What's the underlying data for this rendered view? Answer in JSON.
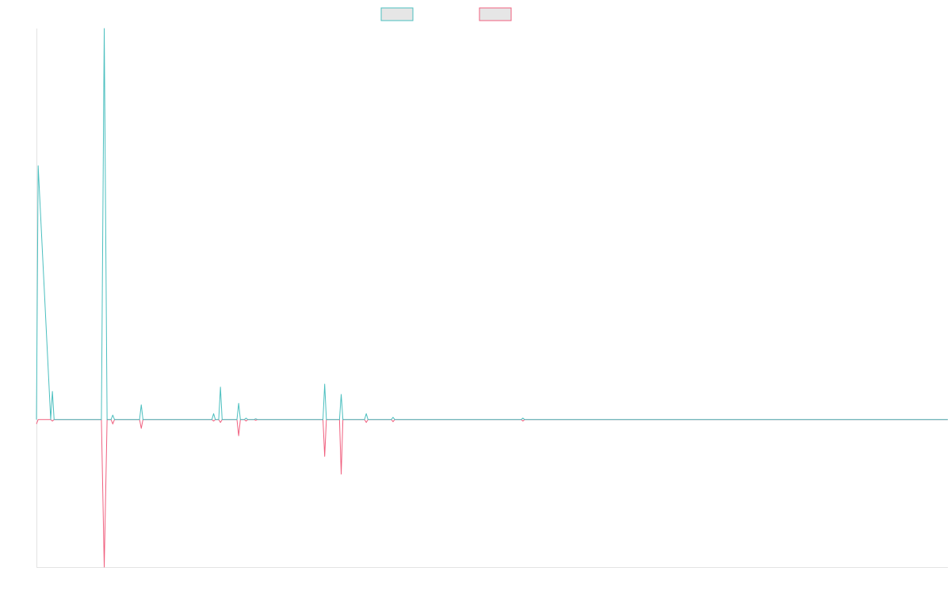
{
  "colors": {
    "series_a": "#4bbfbf",
    "series_b": "#f0607f",
    "axis": "#e3e3e3",
    "legend_fill": "#e6e6e6"
  },
  "chart_data": {
    "type": "line",
    "title": "",
    "xlabel": "",
    "ylabel": "",
    "legend": "top-center",
    "grid": false,
    "xlim": [
      0,
      160
    ],
    "ylim": [
      -100,
      265
    ],
    "series": [
      {
        "key": "a",
        "color": "#4bbfbf",
        "x": [
          0,
          0.3,
          2.5,
          2.8,
          3.1,
          11.4,
          11.9,
          12.4,
          13.1,
          13.4,
          13.7,
          18.1,
          18.4,
          18.7,
          30.8,
          31.1,
          31.4,
          32,
          32.3,
          32.6,
          35.2,
          35.5,
          35.8,
          36.5,
          36.8,
          37.1,
          38.2,
          38.5,
          38.8,
          40.1,
          40.4,
          40.7,
          50.3,
          50.6,
          50.9,
          53.2,
          53.5,
          53.8,
          57.6,
          57.9,
          58.2,
          62.3,
          62.6,
          62.9,
          85.1,
          85.4,
          85.7,
          160
        ],
        "y": [
          0,
          172,
          0,
          19,
          0,
          0,
          265,
          0,
          0,
          3,
          0,
          0,
          10,
          0,
          0,
          4,
          0,
          0,
          22,
          0,
          0,
          11,
          0,
          0,
          1,
          0,
          0,
          0.5,
          0,
          0,
          0,
          0,
          0,
          24,
          0,
          0,
          17,
          0,
          0,
          4,
          0,
          0,
          1.5,
          0,
          0,
          1,
          0,
          0
        ]
      },
      {
        "key": "b",
        "color": "#f0607f",
        "x": [
          0,
          0.3,
          2.5,
          2.8,
          3.1,
          11.4,
          11.9,
          12.4,
          13.1,
          13.4,
          13.7,
          18.1,
          18.4,
          18.7,
          30.8,
          31.1,
          31.4,
          32,
          32.3,
          32.6,
          35.2,
          35.5,
          35.8,
          36.5,
          36.8,
          37.1,
          38.2,
          38.5,
          38.8,
          40.1,
          40.4,
          40.7,
          50.3,
          50.6,
          50.9,
          53.2,
          53.5,
          53.8,
          57.6,
          57.9,
          58.2,
          62.3,
          62.6,
          62.9,
          85.1,
          85.4,
          85.7,
          160
        ],
        "y": [
          -3,
          0,
          0,
          -1,
          0,
          0,
          -100,
          0,
          0,
          -3,
          0,
          0,
          -6,
          0,
          0,
          -1,
          0,
          0,
          -2,
          0,
          0,
          -11,
          0,
          0,
          -1,
          0,
          0,
          -0.5,
          0,
          0,
          0,
          0,
          0,
          -25,
          0,
          0,
          -37,
          0,
          0,
          -2,
          0,
          0,
          -1.5,
          0,
          0,
          -1,
          0,
          0
        ]
      }
    ]
  }
}
